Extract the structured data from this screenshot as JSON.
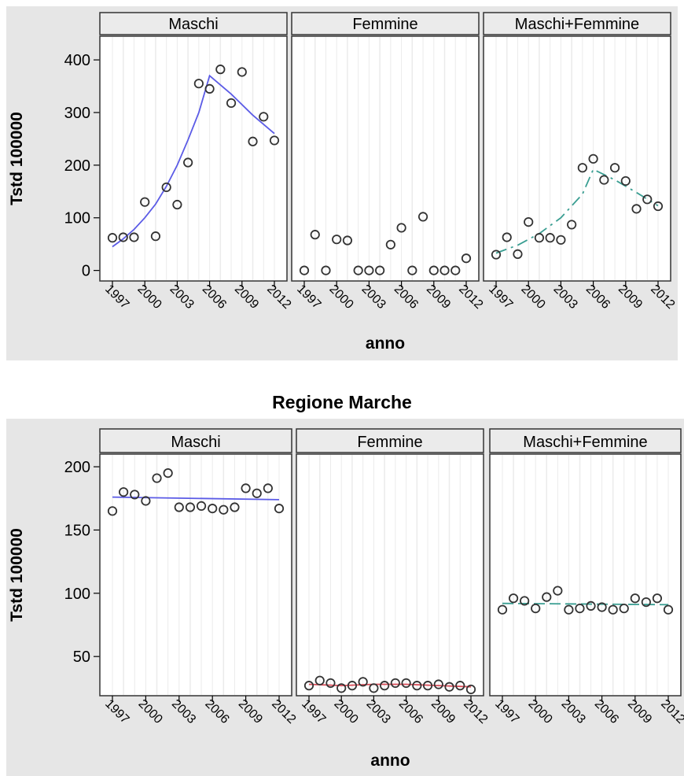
{
  "title": "Regione Marche",
  "colors": {
    "outer_background": "#e6e6e6",
    "panel_background": "#ffffff",
    "strip_background": "#e6e6e6",
    "grid": "#ebebeb",
    "points": "#333333",
    "maschi_line": "#5b5be6",
    "femmine_line": "#d94b57",
    "maschi_femmine_line": "#3a9e92"
  },
  "chart_data": [
    {
      "type": "scatter",
      "xlabel": "anno",
      "ylabel": "Tstd 100000",
      "x_ticks": [
        1997,
        2000,
        2003,
        2006,
        2009,
        2012
      ],
      "y_ticks": [
        0,
        100,
        200,
        300,
        400
      ],
      "ylim": [
        -20,
        445
      ],
      "xlim": [
        1996.3,
        2012.7
      ],
      "grid": true,
      "panels": [
        {
          "name": "Maschi",
          "points": [
            [
              1997,
              62
            ],
            [
              1998,
              63
            ],
            [
              1999,
              63
            ],
            [
              2000,
              130
            ],
            [
              2001,
              65
            ],
            [
              2002,
              158
            ],
            [
              2003,
              125
            ],
            [
              2004,
              205
            ],
            [
              2005,
              355
            ],
            [
              2006,
              345
            ],
            [
              2007,
              382
            ],
            [
              2008,
              318
            ],
            [
              2009,
              377
            ],
            [
              2010,
              245
            ],
            [
              2011,
              292
            ],
            [
              2012,
              247
            ]
          ],
          "line": [
            [
              1997,
              45
            ],
            [
              1998,
              60
            ],
            [
              1999,
              78
            ],
            [
              2000,
              100
            ],
            [
              2001,
              126
            ],
            [
              2002,
              160
            ],
            [
              2003,
              200
            ],
            [
              2004,
              248
            ],
            [
              2005,
              300
            ],
            [
              2006,
              370
            ],
            [
              2008,
              335
            ],
            [
              2010,
              295
            ],
            [
              2012,
              260
            ]
          ],
          "line_style": "solid",
          "line_color": "#5b5be6"
        },
        {
          "name": "Femmine",
          "points": [
            [
              1997,
              0
            ],
            [
              1998,
              68
            ],
            [
              1999,
              0
            ],
            [
              2000,
              59
            ],
            [
              2001,
              57
            ],
            [
              2002,
              0
            ],
            [
              2003,
              0
            ],
            [
              2004,
              0
            ],
            [
              2005,
              49
            ],
            [
              2006,
              81
            ],
            [
              2007,
              0
            ],
            [
              2008,
              102
            ],
            [
              2009,
              0
            ],
            [
              2010,
              0
            ],
            [
              2011,
              0
            ],
            [
              2012,
              23
            ]
          ],
          "line": [],
          "line_style": "solid",
          "line_color": "#d94b57"
        },
        {
          "name": "Maschi+Femmine",
          "points": [
            [
              1997,
              30
            ],
            [
              1998,
              63
            ],
            [
              1999,
              31
            ],
            [
              2000,
              92
            ],
            [
              2001,
              62
            ],
            [
              2002,
              62
            ],
            [
              2003,
              58
            ],
            [
              2004,
              87
            ],
            [
              2005,
              195
            ],
            [
              2006,
              212
            ],
            [
              2007,
              172
            ],
            [
              2008,
              195
            ],
            [
              2009,
              170
            ],
            [
              2010,
              117
            ],
            [
              2011,
              135
            ],
            [
              2012,
              122
            ]
          ],
          "line": [
            [
              1997,
              33
            ],
            [
              1999,
              48
            ],
            [
              2001,
              70
            ],
            [
              2003,
              100
            ],
            [
              2005,
              145
            ],
            [
              2006,
              192
            ],
            [
              2008,
              172
            ],
            [
              2010,
              148
            ],
            [
              2012,
              123
            ]
          ],
          "line_style": "dashdot",
          "line_color": "#3a9e92"
        }
      ]
    },
    {
      "type": "scatter",
      "title": "Regione Marche",
      "xlabel": "anno",
      "ylabel": "Tstd 100000",
      "x_ticks": [
        1997,
        2000,
        2003,
        2006,
        2009,
        2012
      ],
      "y_ticks": [
        50,
        100,
        150,
        200
      ],
      "ylim": [
        19,
        210
      ],
      "xlim": [
        1996.3,
        2012.7
      ],
      "grid": true,
      "panels": [
        {
          "name": "Maschi",
          "points": [
            [
              1997,
              165
            ],
            [
              1998,
              180
            ],
            [
              1999,
              178
            ],
            [
              2000,
              173
            ],
            [
              2001,
              191
            ],
            [
              2002,
              195
            ],
            [
              2003,
              168
            ],
            [
              2004,
              168
            ],
            [
              2005,
              169
            ],
            [
              2006,
              167
            ],
            [
              2007,
              166
            ],
            [
              2008,
              168
            ],
            [
              2009,
              183
            ],
            [
              2010,
              179
            ],
            [
              2011,
              183
            ],
            [
              2012,
              167
            ]
          ],
          "line": [
            [
              1997,
              176
            ],
            [
              2012,
              174
            ]
          ],
          "line_style": "solid",
          "line_color": "#5b5be6"
        },
        {
          "name": "Femmine",
          "points": [
            [
              1997,
              27
            ],
            [
              1998,
              31
            ],
            [
              1999,
              29
            ],
            [
              2000,
              25
            ],
            [
              2001,
              27
            ],
            [
              2002,
              30
            ],
            [
              2003,
              25
            ],
            [
              2004,
              27
            ],
            [
              2005,
              29
            ],
            [
              2006,
              29
            ],
            [
              2007,
              27
            ],
            [
              2008,
              27
            ],
            [
              2009,
              28
            ],
            [
              2010,
              26
            ],
            [
              2011,
              27
            ],
            [
              2012,
              24
            ]
          ],
          "line": [
            [
              1997,
              28
            ],
            [
              2000,
              27
            ],
            [
              2003,
              28
            ],
            [
              2006,
              28
            ],
            [
              2009,
              27
            ],
            [
              2012,
              26
            ]
          ],
          "line_style": "solid",
          "line_color": "#d94b57"
        },
        {
          "name": "Maschi+Femmine",
          "points": [
            [
              1997,
              87
            ],
            [
              1998,
              96
            ],
            [
              1999,
              94
            ],
            [
              2000,
              88
            ],
            [
              2001,
              97
            ],
            [
              2002,
              102
            ],
            [
              2003,
              87
            ],
            [
              2004,
              88
            ],
            [
              2005,
              90
            ],
            [
              2006,
              89
            ],
            [
              2007,
              87
            ],
            [
              2008,
              88
            ],
            [
              2009,
              96
            ],
            [
              2010,
              93
            ],
            [
              2011,
              96
            ],
            [
              2012,
              87
            ]
          ],
          "line": [
            [
              1997,
              92
            ],
            [
              2012,
              91
            ]
          ],
          "line_style": "dashed",
          "line_color": "#3a9e92"
        }
      ]
    }
  ]
}
